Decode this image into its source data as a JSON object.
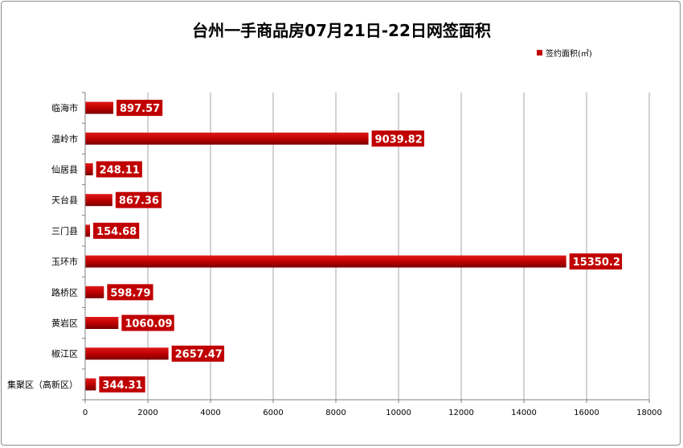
{
  "chart_data": {
    "type": "bar",
    "orientation": "horizontal",
    "title": "台州一手商品房07月21日-22日网签面积",
    "categories": [
      "临海市",
      "温岭市",
      "仙居县",
      "天台县",
      "三门县",
      "玉环市",
      "路桥区",
      "黄岩区",
      "椒江区",
      "集聚区（高新区）"
    ],
    "series": [
      {
        "name": "签约面积(㎡)",
        "values": [
          897.57,
          9039.82,
          248.11,
          867.36,
          154.68,
          15350.2,
          598.79,
          1060.09,
          2657.47,
          344.31
        ],
        "labels": [
          "897.57",
          "9039.82",
          "248.11",
          "867.36",
          "154.68",
          "15350.2",
          "598.79",
          "1060.09",
          "2657.47",
          "344.31"
        ]
      }
    ],
    "xlim": [
      0,
      18000
    ],
    "xticks": [
      0,
      2000,
      4000,
      6000,
      8000,
      10000,
      12000,
      14000,
      16000,
      18000
    ],
    "xtick_labels": [
      "0",
      "2000",
      "4000",
      "6000",
      "8000",
      "10000",
      "12000",
      "14000",
      "16000",
      "18000"
    ],
    "grid": "vertical",
    "legend_position": "top-right",
    "colors": {
      "bar": "#c00000",
      "label_bg": "#c00000",
      "label_text": "#ffffff"
    }
  }
}
